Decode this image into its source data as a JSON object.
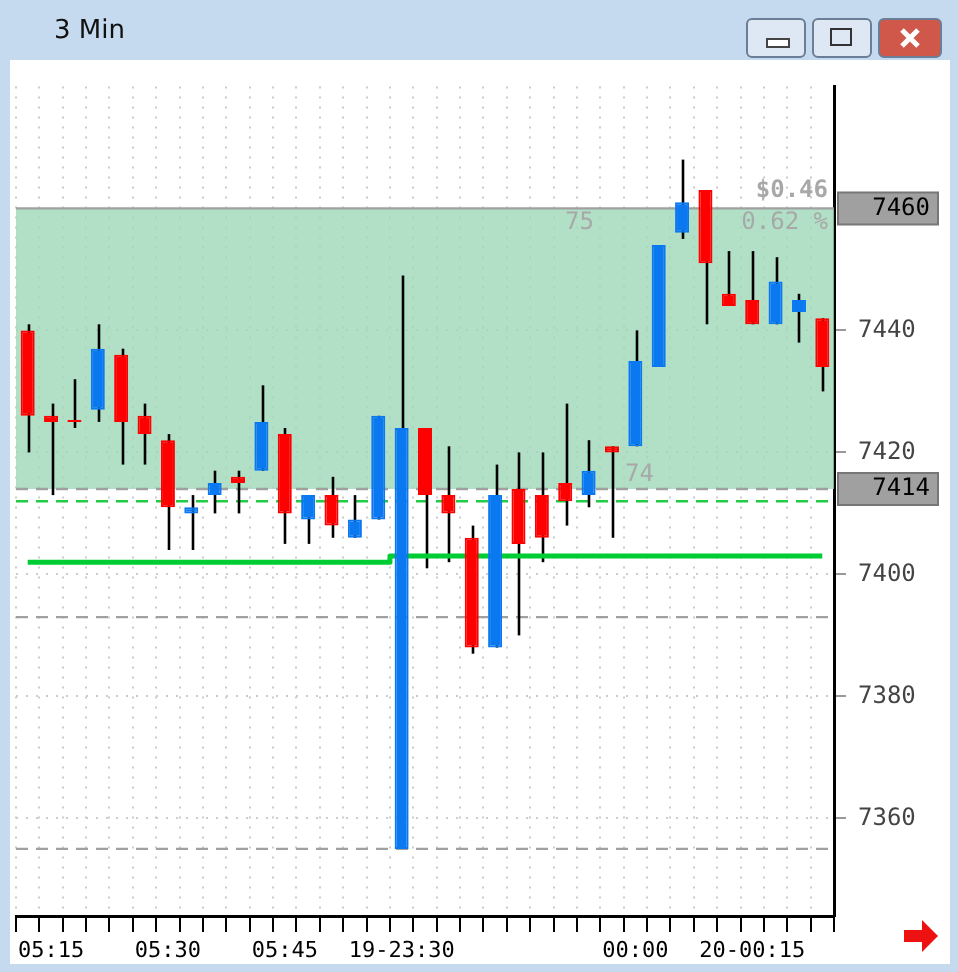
{
  "chart_data": {
    "type": "candlestick",
    "title": "3 Min",
    "categories": [
      null,
      "05:15",
      null,
      null,
      null,
      null,
      "05:30",
      null,
      null,
      null,
      null,
      "05:45",
      null,
      null,
      null,
      null,
      "19-23:30",
      null,
      null,
      null,
      null,
      null,
      null,
      null,
      null,
      null,
      "00:00",
      null,
      null,
      null,
      null,
      "20-00:15",
      null,
      null,
      null
    ],
    "ohlc": [
      [
        7440,
        7441,
        7420,
        7426
      ],
      [
        7426,
        7428,
        7413,
        7425
      ],
      [
        7425,
        7432,
        7424,
        7425
      ],
      [
        7427,
        7441,
        7425,
        7437
      ],
      [
        7436,
        7437,
        7418,
        7425
      ],
      [
        7426,
        7428,
        7418,
        7423
      ],
      [
        7422,
        7423,
        7404,
        7411
      ],
      [
        7410,
        7413,
        7404,
        7411
      ],
      [
        7413,
        7417,
        7410,
        7415
      ],
      [
        7416,
        7417,
        7410,
        7415
      ],
      [
        7417,
        7431,
        7417,
        7425
      ],
      [
        7423,
        7424,
        7405,
        7410
      ],
      [
        7409,
        7413,
        7405,
        7413
      ],
      [
        7413,
        7416,
        7406,
        7408
      ],
      [
        7406,
        7413,
        7406,
        7409
      ],
      [
        7409,
        7426,
        7409,
        7426
      ],
      [
        7355,
        7449,
        7355,
        7424
      ],
      [
        7424,
        7424,
        7401,
        7413
      ],
      [
        7413,
        7421,
        7402,
        7410
      ],
      [
        7406,
        7408,
        7387,
        7388
      ],
      [
        7388,
        7418,
        7388,
        7413
      ],
      [
        7414,
        7420,
        7390,
        7405
      ],
      [
        7413,
        7420,
        7402,
        7406
      ],
      [
        7415,
        7428,
        7408,
        7412
      ],
      [
        7413,
        7422,
        7411,
        7417
      ],
      [
        7421,
        7421,
        7406,
        7420
      ],
      [
        7421,
        7440,
        7421,
        7435
      ],
      [
        7434,
        7454,
        7434,
        7454
      ],
      [
        7456,
        7468,
        7455,
        7461
      ],
      [
        7463,
        7463,
        7441,
        7451
      ],
      [
        7446,
        7453,
        7444,
        7444
      ],
      [
        7445,
        7453,
        7441,
        7441
      ],
      [
        7441,
        7452,
        7441,
        7448
      ],
      [
        7443,
        7446,
        7438,
        7445
      ],
      [
        7442,
        7442,
        7430,
        7434
      ]
    ],
    "colors": [
      "#ff0000",
      "#ff0000",
      "#ff0000",
      "#0a78f0",
      "#ff0000",
      "#ff0000",
      "#ff0000",
      "#0a78f0",
      "#0a78f0",
      "#ff0000",
      "#0a78f0",
      "#ff0000",
      "#0a78f0",
      "#ff0000",
      "#0a78f0",
      "#0a78f0",
      "#0a78f0",
      "#ff0000",
      "#ff0000",
      "#ff0000",
      "#0a78f0",
      "#ff0000",
      "#ff0000",
      "#ff0000",
      "#0a78f0",
      "#ff0000",
      "#0a78f0",
      "#0a78f0",
      "#0a78f0",
      "#ff0000",
      "#ff0000",
      "#ff0000",
      "#0a78f0",
      "#0a78f0",
      "#ff0000"
    ],
    "series": [
      {
        "type": "step",
        "color": "#00cc33",
        "values": [
          7402,
          7402,
          7402,
          7402,
          7402,
          7402,
          7402,
          7402,
          7402,
          7402,
          7402,
          7402,
          7402,
          7402,
          7402,
          7402,
          7403,
          7403,
          7403,
          7403,
          7403,
          7403,
          7403,
          7403,
          7403,
          7403,
          7403,
          7403,
          7403,
          7403,
          7403,
          7403,
          7403,
          7403,
          7403
        ]
      }
    ],
    "ylim": [
      7344,
      7480
    ],
    "yticks": [
      7360,
      7380,
      7400,
      7420,
      7440
    ],
    "grid": true,
    "legend": false,
    "ref_lines": [
      {
        "axis": "y",
        "value": 7460,
        "label": "7460",
        "color": "#a0a0a0",
        "line_style": "solid"
      },
      {
        "axis": "y",
        "value": 7414,
        "label": "7414",
        "color": "#a0a0a0",
        "line_style": "dashed"
      },
      {
        "axis": "y",
        "value": 7412,
        "color": "#22cc44",
        "line_style": "dashed"
      },
      {
        "axis": "y",
        "value": 7393,
        "color": "#a0a0a0",
        "line_style": "dashed"
      },
      {
        "axis": "y",
        "value": 7355,
        "color": "#a0a0a0",
        "line_style": "dashed"
      }
    ],
    "bands": [
      {
        "axis": "y",
        "from": 7414,
        "to": 7460,
        "color": "#9ed8b8"
      }
    ],
    "annotations": [
      "$0.46",
      "0.62 %",
      "75",
      "74"
    ]
  }
}
